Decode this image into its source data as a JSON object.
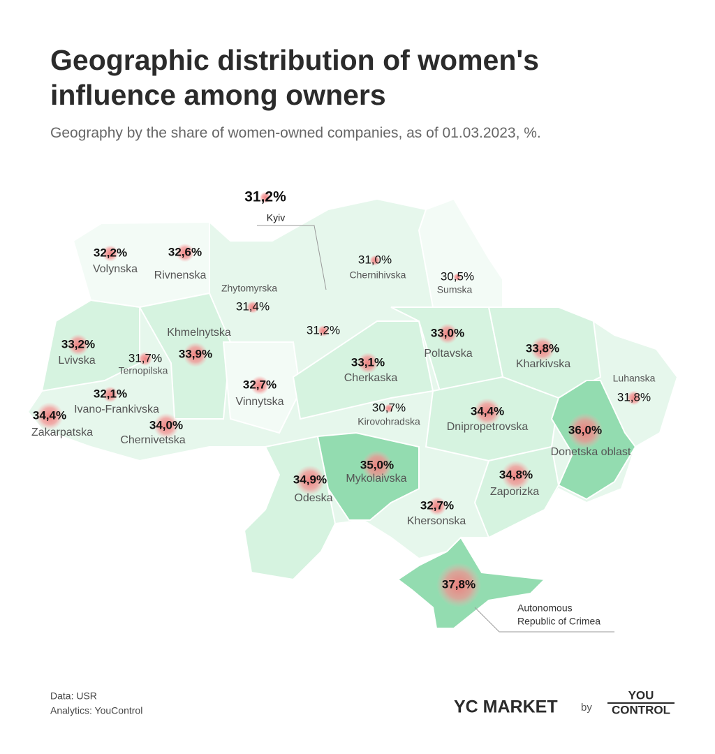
{
  "title": [
    "Geographic distribution of women's",
    "influence among owners"
  ],
  "subtitle": "Geography by the share of women-owned companies, as of 01.03.2023, %.",
  "regions": [
    {
      "name": "Kyiv",
      "value": 31.2,
      "value_label": "31,2%"
    },
    {
      "name": "Volynska",
      "value": 32.2,
      "value_label": "32,2%"
    },
    {
      "name": "Rivnenska",
      "value": 32.6,
      "value_label": "32,6%"
    },
    {
      "name": "Zhytomyrska",
      "value": 31.4,
      "value_label": "31,4%"
    },
    {
      "name": "Chernihivska",
      "value": 31.0,
      "value_label": "31,0%"
    },
    {
      "name": "Sumska",
      "value": 30.5,
      "value_label": "30,5%"
    },
    {
      "value": 31.2,
      "value_label": "31,2%"
    },
    {
      "name": "Khmelnytska",
      "value": 33.9,
      "value_label": "33,9%"
    },
    {
      "name": "Lvivska",
      "value": 33.2,
      "value_label": "33,2%"
    },
    {
      "name": "Ternopilska",
      "value": 31.7,
      "value_label": "31,7%"
    },
    {
      "name": "Vinnytska",
      "value": 32.7,
      "value_label": "32,7%"
    },
    {
      "name": "Cherkaska",
      "value": 33.1,
      "value_label": "33,1%"
    },
    {
      "name": "Poltavska",
      "value": 33.0,
      "value_label": "33,0%"
    },
    {
      "name": "Kharkivska",
      "value": 33.8,
      "value_label": "33,8%"
    },
    {
      "name": "Luhanska",
      "value": 31.8,
      "value_label": "31,8%"
    },
    {
      "name": "Ivano-Frankivska",
      "value": 32.1,
      "value_label": "32,1%"
    },
    {
      "name": "Zakarpatska",
      "value": 34.4,
      "value_label": "34,4%"
    },
    {
      "name": "Chernivetska",
      "value": 34.0,
      "value_label": "34,0%"
    },
    {
      "name": "Kirovohradska",
      "value": 30.7,
      "value_label": "30,7%"
    },
    {
      "name": "Dnipropetrovska",
      "value": 34.4,
      "value_label": "34,4%"
    },
    {
      "name": "Donetska oblast",
      "value": 36.0,
      "value_label": "36,0%"
    },
    {
      "name": "Odeska",
      "value": 34.9,
      "value_label": "34,9%"
    },
    {
      "name": "Mykolaivska",
      "value": 35.0,
      "value_label": "35,0%"
    },
    {
      "name": "Zaporizka",
      "value": 34.8,
      "value_label": "34,8%"
    },
    {
      "name": "Khersonska",
      "value": 32.7,
      "value_label": "32,7%"
    },
    {
      "name": [
        "Autonomous",
        "Republic of Crimea"
      ],
      "value": 37.8,
      "value_label": "37,8%"
    }
  ],
  "footer": {
    "source": "Data: USR",
    "analytics": "Analytics: YouControl",
    "brand": "YC MARKET",
    "by": "by",
    "logo": [
      "YOU",
      "CONTROL"
    ]
  }
}
